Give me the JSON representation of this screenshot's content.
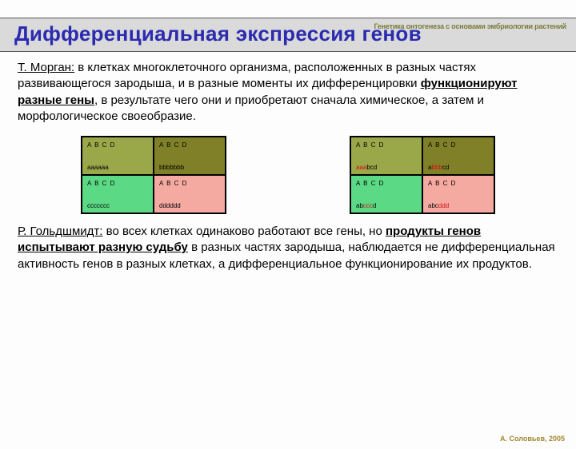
{
  "header_small": "Генетика онтогенеза с основами эмбриологии растений",
  "title": "Дифференциальная экспрессия генов",
  "para1": {
    "lead": "Т. Морган:",
    "body": " в клетках многоклеточного организма, расположенных в разных частях развивающегося зародыша, и в разные моменты их дифференцировки ",
    "ul": "функционируют разные гены",
    "tail": ", в результате чего они и приобретают сначала химическое, а затем и морфологическое своеобразие."
  },
  "para2": {
    "lead": "Р. Гольдшмидт:",
    "body": " во всех клетках одинаково работают все гены, но ",
    "ul": "продукты генов испытывают разную судьбу",
    "tail": " в разных частях зародыша, наблюдается не дифференциальная активность генов в разных клетках, а дифференциальное функционирование их продуктов."
  },
  "grid_header": "A B C D",
  "grid_left": {
    "cells": [
      {
        "value_plain": "aaaaaa",
        "bg": "#9aa84a"
      },
      {
        "value_plain": "bbbbbbb",
        "bg": "#808028"
      },
      {
        "value_plain": "ccccccc",
        "bg": "#5bd985"
      },
      {
        "value_plain": "dddddd",
        "bg": "#f4a9a1"
      }
    ]
  },
  "grid_right": {
    "cells": [
      {
        "value_html": "<span class='red'>aaa</span>bcd",
        "bg": "#9aa84a"
      },
      {
        "value_html": "a<span class='red'>bbb</span>cd",
        "bg": "#808028"
      },
      {
        "value_html": "ab<span class='red'>ccc</span>d",
        "bg": "#5bd985"
      },
      {
        "value_html": "abc<span class='red'>ddd</span>",
        "bg": "#f4a9a1"
      }
    ]
  },
  "colors": {
    "title": "#2b2bb0",
    "title_bg": "#dadada"
  },
  "footer": "А. Соловьев, 2005"
}
